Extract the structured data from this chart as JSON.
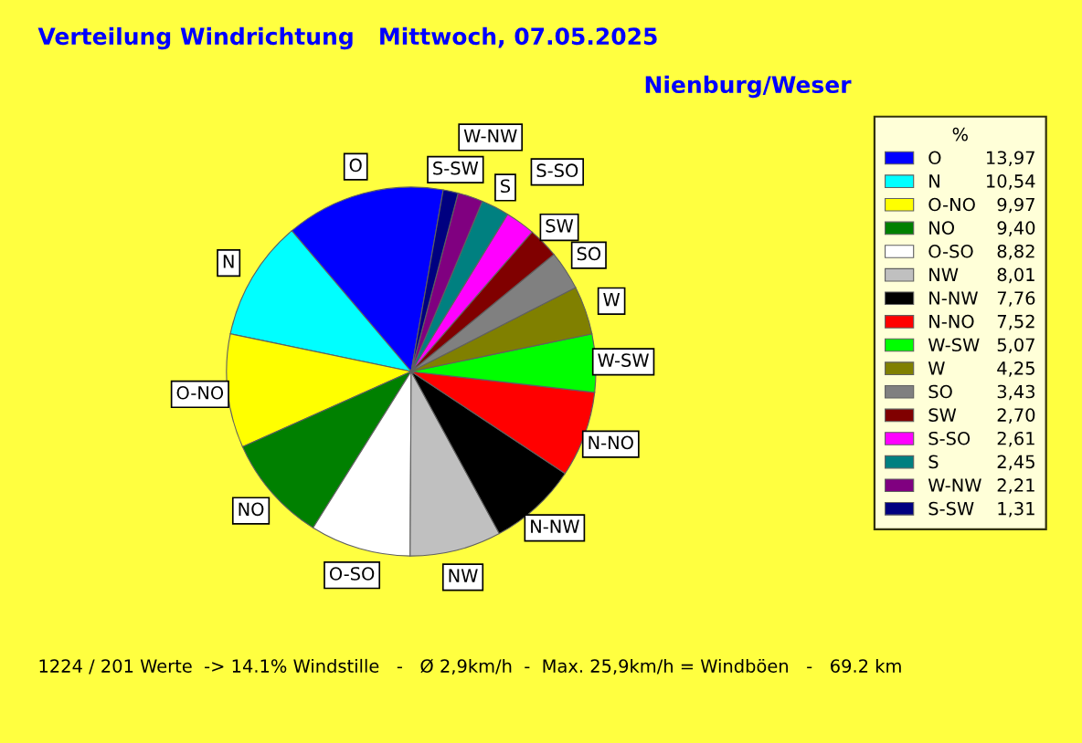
{
  "chart_data": {
    "type": "pie",
    "title": "Verteilung Windrichtung   Mittwoch, 07.05.2025",
    "subtitle": "Nienburg/Weser",
    "categories": [
      "O",
      "N",
      "O-NO",
      "NO",
      "O-SO",
      "NW",
      "N-NW",
      "N-NO",
      "W-SW",
      "W",
      "SO",
      "SW",
      "S-SO",
      "S",
      "W-NW",
      "S-SW"
    ],
    "values": [
      13.97,
      10.54,
      9.97,
      9.4,
      8.82,
      8.01,
      7.76,
      7.52,
      5.07,
      4.25,
      3.43,
      2.7,
      2.61,
      2.45,
      2.21,
      1.31
    ],
    "colors": [
      "#0000ff",
      "#00ffff",
      "#ffff00",
      "#008000",
      "#ffffff",
      "#c0c0c0",
      "#000000",
      "#ff0000",
      "#00ff00",
      "#808000",
      "#808080",
      "#800000",
      "#ff00ff",
      "#008080",
      "#800080",
      "#000080"
    ],
    "value_labels": [
      "13,97",
      "10,54",
      "9,97",
      "9,40",
      "8,82",
      "8,01",
      "7,76",
      "7,52",
      "5,07",
      "4,25",
      "3,43",
      "2,70",
      "2,61",
      "2,45",
      "2,21",
      "1,31"
    ],
    "legend": "right",
    "legend_title": "%",
    "annotations": [
      "1224 / 201 Werte  -> 14.1% Windstille   -   Ø 2,9km/h  -  Max. 25,9km/h = Windböen   -   69.2 km"
    ]
  }
}
